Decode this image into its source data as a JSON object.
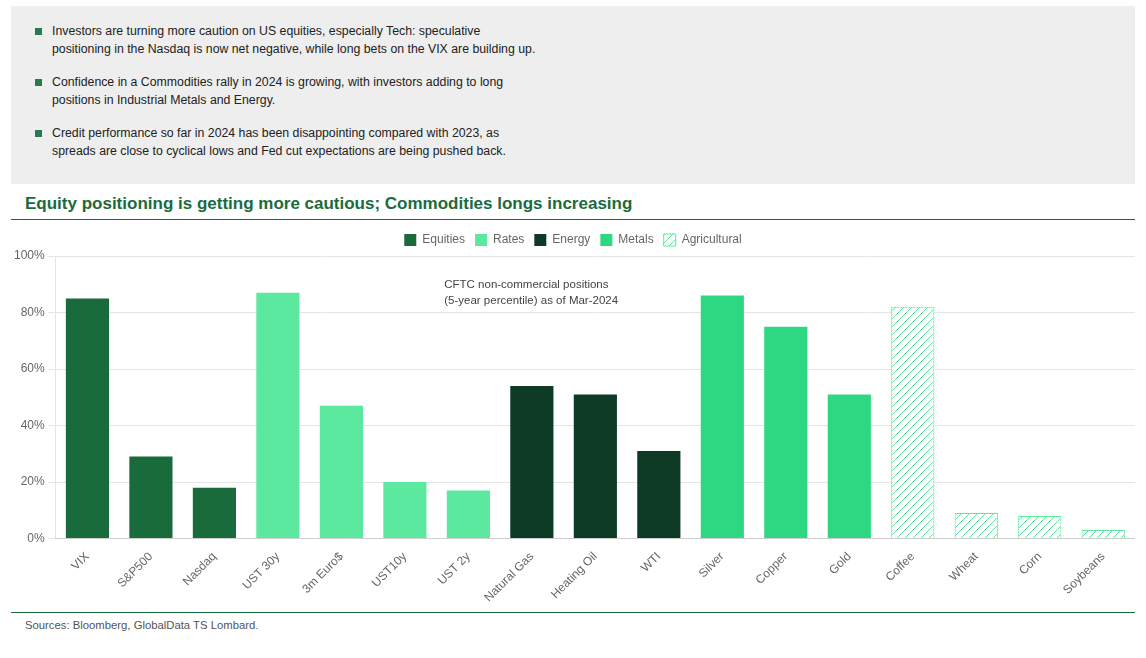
{
  "chart_data": {
    "type": "bar",
    "title": "Equity positioning is getting more cautious; Commodities longs increasing",
    "bullets": [
      "Investors are turning more caution on US equities, especially Tech: speculative\npositioning in the Nasdaq is now net negative, while long bets on the VIX are building up.",
      "Confidence in a Commodities rally in 2024 is growing, with investors adding to long\npositions in Industrial Metals and Energy.",
      "Credit performance so far in 2024 has been disappointing compared with 2023, as\nspreads are close to cyclical lows and Fed cut expectations are being pushed back."
    ],
    "annotation": "CFTC non-commercial positions\n(5-year percentile) as of Mar-2024",
    "source": "Sources: Bloomberg, GlobalData TS Lombard.",
    "categories": [
      "VIX",
      "S&P500",
      "Nasdaq",
      "UST 30y",
      "3m Euro$",
      "UST10y",
      "UST 2y",
      "Natural Gas",
      "Heating Oil",
      "WTI",
      "Silver",
      "Copper",
      "Gold",
      "Coffee",
      "Wheat",
      "Corn",
      "Soybeans"
    ],
    "series": [
      {
        "name": "Equities",
        "color": "#1a6b3c",
        "values": [
          85,
          29,
          18,
          null,
          null,
          null,
          null,
          null,
          null,
          null,
          null,
          null,
          null,
          null,
          null,
          null,
          null
        ]
      },
      {
        "name": "Rates",
        "color": "#5de8a0",
        "values": [
          null,
          null,
          null,
          87,
          47,
          20,
          17,
          null,
          null,
          null,
          null,
          null,
          null,
          null,
          null,
          null,
          null
        ]
      },
      {
        "name": "Energy",
        "color": "#0d3b26",
        "values": [
          null,
          null,
          null,
          null,
          null,
          null,
          null,
          54,
          51,
          31,
          null,
          null,
          null,
          null,
          null,
          null,
          null
        ]
      },
      {
        "name": "Metals",
        "color": "#2ed882",
        "values": [
          null,
          null,
          null,
          null,
          null,
          null,
          null,
          null,
          null,
          null,
          86,
          75,
          51,
          null,
          null,
          null,
          null
        ]
      },
      {
        "name": "Agricultural",
        "color": "#5de8a0",
        "marker": "hatch",
        "values": [
          null,
          null,
          null,
          null,
          null,
          null,
          null,
          null,
          null,
          null,
          null,
          null,
          null,
          82,
          9,
          8,
          3
        ]
      }
    ],
    "ylim": [
      0,
      100
    ],
    "yticks": [
      {
        "value": 0,
        "label": "0%"
      },
      {
        "value": 20,
        "label": "20%"
      },
      {
        "value": 40,
        "label": "40%"
      },
      {
        "value": 60,
        "label": "60%"
      },
      {
        "value": 80,
        "label": "80%"
      },
      {
        "value": 100,
        "label": "100%"
      }
    ],
    "grid": true,
    "legend": "top"
  }
}
